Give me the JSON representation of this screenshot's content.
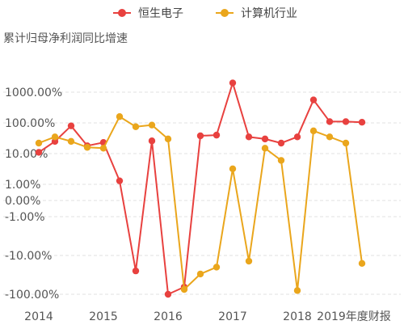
{
  "subtitle": "累计归母净利润同比增速",
  "colors": {
    "hengsheng": "#e8413f",
    "computer": "#eaa61c"
  },
  "chart_data": {
    "type": "line",
    "title": "",
    "subtitle": "累计归母净利润同比增速",
    "xlabel": "",
    "ylabel": "",
    "y_scale": "symmetric-log",
    "grid": true,
    "legend": "top-center",
    "ytick_values": [
      1000,
      100,
      10,
      1,
      0,
      -1,
      -10,
      -100
    ],
    "ytick_labels": [
      "1000.00%",
      "100.00%",
      "10.00%",
      "1.00%",
      "0.00%",
      "-1.00%",
      "-10.00%",
      "-100.00%"
    ],
    "xtick_labels": [
      "2014",
      "2015",
      "2016",
      "2017",
      "2018",
      "2019年度财报"
    ],
    "xtick_positions": [
      0,
      4,
      8,
      12,
      16,
      19.5
    ],
    "x": [
      0,
      1,
      2,
      3,
      4,
      5,
      6,
      7,
      8,
      9,
      10,
      11,
      12,
      13,
      14,
      15,
      16,
      17,
      18,
      19,
      20
    ],
    "series": [
      {
        "name": "恒生电子",
        "color": "#e8413f",
        "values": [
          11,
          25,
          80,
          18,
          23,
          1.3,
          -25,
          26,
          -100,
          -65,
          38,
          40,
          2000,
          35,
          30,
          22,
          35,
          560,
          110,
          110,
          105
        ]
      },
      {
        "name": "计算机行业",
        "color": "#eaa61c",
        "values": [
          22,
          35,
          25,
          16,
          15,
          160,
          75,
          85,
          30,
          -75,
          -30,
          -20,
          3.2,
          -14,
          15,
          6,
          -80,
          55,
          35,
          22,
          -16
        ]
      }
    ]
  }
}
